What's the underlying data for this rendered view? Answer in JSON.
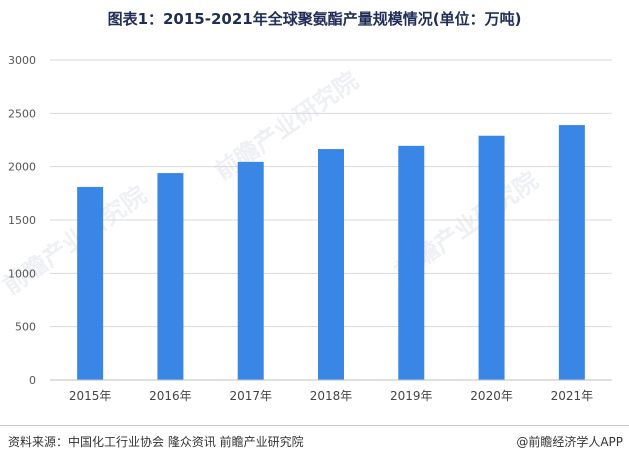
{
  "chart_data": {
    "type": "bar",
    "title": "图表1：2015-2021年全球聚氨酯产量规模情况(单位：万吨)",
    "categories": [
      "2015年",
      "2016年",
      "2017年",
      "2018年",
      "2019年",
      "2020年",
      "2021年"
    ],
    "values": [
      1810,
      1940,
      2045,
      2165,
      2195,
      2290,
      2390
    ],
    "ylim": [
      0,
      3000
    ],
    "yticks": [
      0,
      500,
      1000,
      1500,
      2000,
      2500,
      3000
    ],
    "xlabel": "",
    "ylabel": "",
    "grid": true,
    "legend": "none",
    "bar_color": "#3a86e6"
  },
  "footer": {
    "source": "资料来源：中国化工行业协会 隆众资讯 前瞻产业研究院",
    "credit": "@前瞻经济学人APP"
  },
  "watermark": {
    "text": "前瞻产业研究院"
  }
}
